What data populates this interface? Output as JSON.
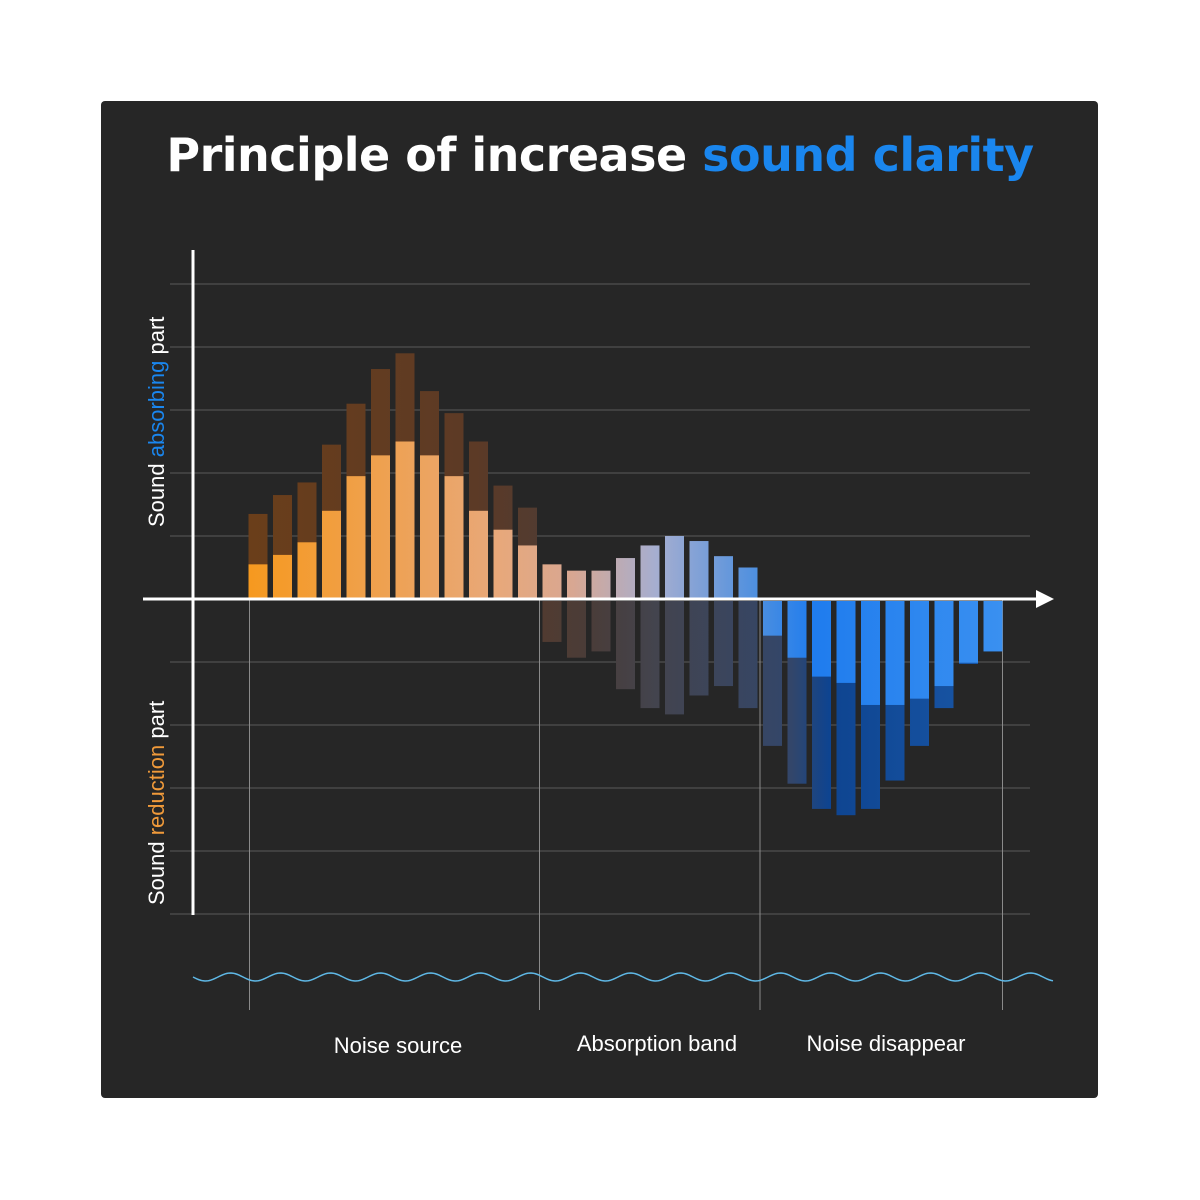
{
  "title": {
    "prefix": "Principle of increase",
    "highlight": "sound clarity"
  },
  "colors": {
    "panel": "#262626",
    "text": "#ffffff",
    "accent_blue": "#1a86ee",
    "accent_orange": "#f09a3a",
    "grid": "#5a5a5a",
    "wave": "#5fb8e6"
  },
  "chart_data": {
    "type": "bar",
    "ylabel_upper": {
      "parts": [
        "Sound ",
        "absorbing",
        " part"
      ]
    },
    "ylabel_lower": {
      "parts": [
        "Sound ",
        "reduction",
        " part"
      ]
    },
    "ylim": [
      -5,
      5
    ],
    "gridlines": [
      -5,
      -4,
      -3,
      -2,
      -1,
      1,
      2,
      3,
      4,
      5
    ],
    "segments": [
      "Noise source",
      "Absorption band",
      "Noise disappear"
    ],
    "bar_count": 31,
    "series": [
      {
        "name": "bright",
        "values": [
          0.55,
          0.7,
          0.9,
          1.4,
          1.95,
          2.28,
          2.5,
          2.28,
          1.95,
          1.4,
          1.1,
          0.85,
          0.55,
          0.45,
          0.45,
          0.65,
          0.85,
          1.0,
          0.92,
          0.68,
          0.5,
          -0.55,
          -0.9,
          -1.2,
          -1.3,
          -1.65,
          -1.65,
          -1.55,
          -1.35,
          -0.98,
          -0.8
        ]
      },
      {
        "name": "shadow",
        "values": [
          1.35,
          1.65,
          1.85,
          2.45,
          3.1,
          3.65,
          3.9,
          3.3,
          2.95,
          2.5,
          1.8,
          1.45,
          -0.65,
          -0.9,
          -0.8,
          -1.4,
          -1.7,
          -1.8,
          -1.5,
          -1.35,
          -1.7,
          -2.3,
          -2.9,
          -3.3,
          -3.4,
          -3.3,
          -2.85,
          -2.3,
          -1.7,
          -1.0,
          -0.8
        ]
      }
    ]
  }
}
